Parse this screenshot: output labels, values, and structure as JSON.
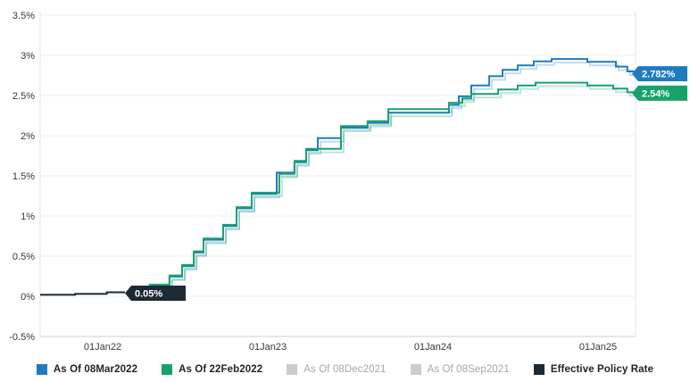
{
  "chart_data": {
    "type": "line",
    "subtype": "step",
    "title": "",
    "xlabel": "",
    "ylabel": "",
    "unit": "%",
    "ylim": [
      -0.5,
      3.5
    ],
    "grid": "horizontal",
    "legend_position": "bottom",
    "y_ticks": [
      {
        "label": "3.5%",
        "value": 3.5
      },
      {
        "label": "3%",
        "value": 3.0
      },
      {
        "label": "2.5%",
        "value": 2.5
      },
      {
        "label": "2%",
        "value": 2.0
      },
      {
        "label": "1.5%",
        "value": 1.5
      },
      {
        "label": "1%",
        "value": 1.0
      },
      {
        "label": "0.5%",
        "value": 0.5
      },
      {
        "label": "0%",
        "value": 0.0
      },
      {
        "label": "-0.5%",
        "value": -0.5
      }
    ],
    "x_ticks": [
      {
        "label": "01Jan22",
        "m": 0
      },
      {
        "label": "01Jan23",
        "m": 12
      },
      {
        "label": "01Jan24",
        "m": 24
      },
      {
        "label": "01Jan25",
        "m": 36
      }
    ],
    "x_range_months": [
      -4.54,
      38.72
    ],
    "series": [
      {
        "name": "As Of 08Mar2022",
        "color": "#1e7bc0",
        "active": true,
        "end_label": "2.782%",
        "end_value": 2.782,
        "end_m": 38.72,
        "steps": [
          [
            3.5,
            0.125
          ],
          [
            4.86,
            0.245
          ],
          [
            5.77,
            0.375
          ],
          [
            6.62,
            0.545
          ],
          [
            7.33,
            0.705
          ],
          [
            8.76,
            0.875
          ],
          [
            9.73,
            1.095
          ],
          [
            10.83,
            1.275
          ],
          [
            12.65,
            1.54
          ],
          [
            13.94,
            1.67
          ],
          [
            14.79,
            1.82
          ],
          [
            15.63,
            1.97
          ],
          [
            17.32,
            2.1
          ],
          [
            19.26,
            2.16
          ],
          [
            20.76,
            2.285
          ],
          [
            25.17,
            2.385
          ],
          [
            25.88,
            2.49
          ],
          [
            26.79,
            2.625
          ],
          [
            28.09,
            2.74
          ],
          [
            29.06,
            2.82
          ],
          [
            30.16,
            2.875
          ],
          [
            31.33,
            2.925
          ],
          [
            32.63,
            2.955
          ],
          [
            35.22,
            2.92
          ],
          [
            37.3,
            2.86
          ],
          [
            38.13,
            2.8
          ]
        ]
      },
      {
        "name": "As Of 22Feb2022",
        "color": "#17a26c",
        "active": true,
        "end_label": "2.54%",
        "end_value": 2.54,
        "end_m": 38.72,
        "steps": [
          [
            3.35,
            0.145
          ],
          [
            4.86,
            0.26
          ],
          [
            5.77,
            0.39
          ],
          [
            6.62,
            0.56
          ],
          [
            7.33,
            0.72
          ],
          [
            8.76,
            0.89
          ],
          [
            9.73,
            1.11
          ],
          [
            10.83,
            1.29
          ],
          [
            12.84,
            1.525
          ],
          [
            13.94,
            1.685
          ],
          [
            14.79,
            1.835
          ],
          [
            17.32,
            2.12
          ],
          [
            19.26,
            2.18
          ],
          [
            20.76,
            2.33
          ],
          [
            25.17,
            2.41
          ],
          [
            26.14,
            2.465
          ],
          [
            26.79,
            2.52
          ],
          [
            28.74,
            2.575
          ],
          [
            30.16,
            2.625
          ],
          [
            31.46,
            2.66
          ],
          [
            35.22,
            2.625
          ],
          [
            37.1,
            2.585
          ],
          [
            38.13,
            2.54
          ]
        ]
      },
      {
        "name": "As Of 08Dec2021",
        "color": "#cccccc",
        "active": false
      },
      {
        "name": "As Of 08Sep2021",
        "color": "#cccccc",
        "active": false
      },
      {
        "name": "Effective Policy Rate",
        "color": "#1d2a36",
        "active": true,
        "end_label": "0.05%",
        "end_value": 0.05,
        "end_m": 1.62,
        "steps": [
          [
            -4.54,
            0.02
          ],
          [
            -2.0,
            0.03
          ],
          [
            0.3,
            0.05
          ]
        ]
      }
    ]
  },
  "legend": {
    "note": "labels bound from chart_data.series names"
  }
}
